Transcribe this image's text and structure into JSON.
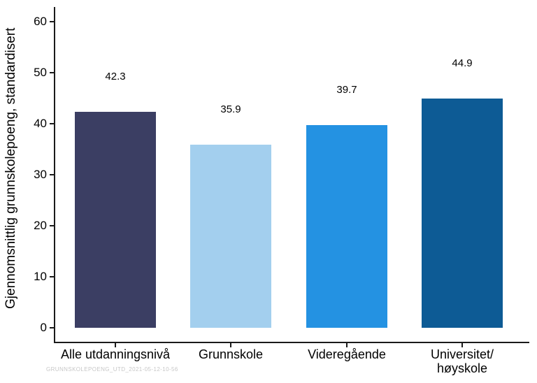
{
  "chart_data": {
    "type": "bar",
    "title": "",
    "xlabel": "",
    "ylabel": "Gjennomsnittlig grunnskolepoeng, standardisert",
    "ylim": [
      0,
      60
    ],
    "yticks": [
      0,
      10,
      20,
      30,
      40,
      50,
      60
    ],
    "grid": false,
    "legend": false,
    "categories": [
      "Alle utdanningsnivå",
      "Grunnskole",
      "Videregående",
      "Universitet/\nhøyskole"
    ],
    "values": [
      42.3,
      35.9,
      39.7,
      44.9
    ],
    "value_labels": [
      "42.3",
      "35.9",
      "39.7",
      "44.9"
    ],
    "bar_colors": [
      "#3b3e63",
      "#a3cfee",
      "#2492e2",
      "#0d5b95"
    ],
    "axis_color": "#1a1a1a"
  },
  "footer": {
    "watermark": "GRUNNSKOLEPOENG_UTD_2021-05-12-10-56"
  }
}
